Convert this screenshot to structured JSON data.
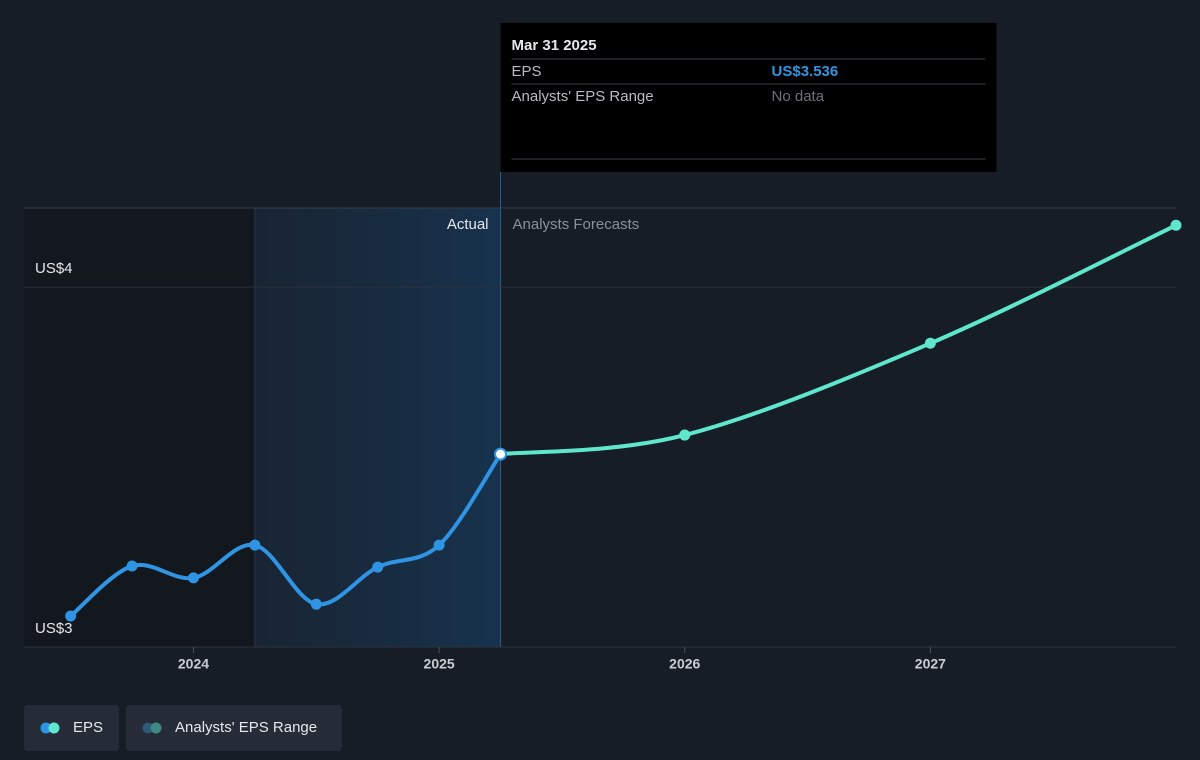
{
  "chart_data": {
    "type": "line",
    "xlim": [
      2023.31,
      2028
    ],
    "xticks": [
      2024,
      2025,
      2026,
      2027
    ],
    "ylim": [
      3,
      4.22
    ],
    "yticks": [
      {
        "value": 3,
        "label": "US$3"
      },
      {
        "value": 4,
        "label": "US$4"
      }
    ],
    "grid": true,
    "regions": {
      "actual": "Actual",
      "forecast": "Analysts Forecasts"
    },
    "series": [
      {
        "name": "EPS",
        "color": "#2f94e3",
        "x": [
          2023.5,
          2023.75,
          2024,
          2024.25,
          2024.5,
          2024.75,
          2025,
          2025.25
        ],
        "values": [
          3.086,
          3.225,
          3.192,
          3.283,
          3.119,
          3.222,
          3.283,
          3.536
        ]
      }
    ],
    "forecast": {
      "color": "#5fe7cc",
      "x": [
        2026,
        2027,
        2028
      ],
      "values": [
        3.589,
        3.844,
        4.172
      ]
    },
    "range_legend": {
      "label": "Analysts' EPS Range",
      "colors": [
        "#2d5a78",
        "#3f8a86"
      ]
    },
    "tooltip": {
      "date": "Mar 31 2025",
      "rows": [
        {
          "label": "EPS",
          "value": "US$3.536"
        },
        {
          "label": "Analysts' EPS Range",
          "value": "No data"
        }
      ]
    }
  }
}
